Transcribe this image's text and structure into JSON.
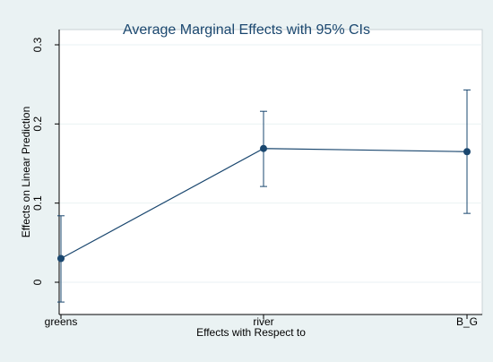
{
  "chart_data": {
    "type": "line",
    "title": "Average Marginal Effects with 95% CIs",
    "xlabel": "Effects with Respect to",
    "ylabel": "Effects on Linear Prediction",
    "categories": [
      "greens",
      "river",
      "B_G"
    ],
    "series": [
      {
        "values": [
          0.03,
          0.169,
          0.165
        ],
        "ci_lower": [
          -0.025,
          0.121,
          0.087
        ],
        "ci_upper": [
          0.084,
          0.216,
          0.243
        ]
      }
    ],
    "ylim": [
      -0.035,
      0.3
    ],
    "yticks": [
      0,
      0.1,
      0.2,
      0.3
    ],
    "ytick_labels": [
      "0",
      "0.1",
      "0.2",
      "0.3"
    ],
    "grid": "horizontal",
    "legend": "none",
    "colors": {
      "outer_background": "#eaf2f3",
      "plot_background": "#ffffff",
      "series": "#1a476f",
      "grid": "#eaf2f3",
      "title": "#1a476f"
    }
  }
}
